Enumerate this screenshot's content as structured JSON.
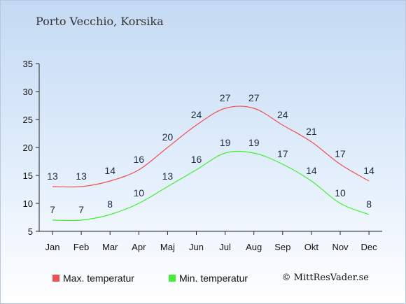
{
  "header": {
    "title": "Porto Vecchio, Korsika"
  },
  "chart_data": {
    "type": "line",
    "categories": [
      "Jan",
      "Feb",
      "Mar",
      "Apr",
      "Maj",
      "Jun",
      "Jul",
      "Aug",
      "Sep",
      "Okt",
      "Nov",
      "Dec"
    ],
    "series": [
      {
        "name": "Max. temperatur",
        "color": "#f05050",
        "values": [
          13,
          13,
          14,
          16,
          20,
          24,
          27,
          27,
          24,
          21,
          17,
          14
        ]
      },
      {
        "name": "Min. temperatur",
        "color": "#44ee33",
        "values": [
          7,
          7,
          8,
          10,
          13,
          16,
          19,
          19,
          17,
          14,
          10,
          8
        ]
      }
    ],
    "ylim": [
      5,
      35
    ],
    "yticks": [
      5,
      10,
      15,
      20,
      25,
      30,
      35
    ],
    "grid": false,
    "legend_position": "bottom"
  },
  "footer": {
    "credit": "© MittResVader.se"
  }
}
